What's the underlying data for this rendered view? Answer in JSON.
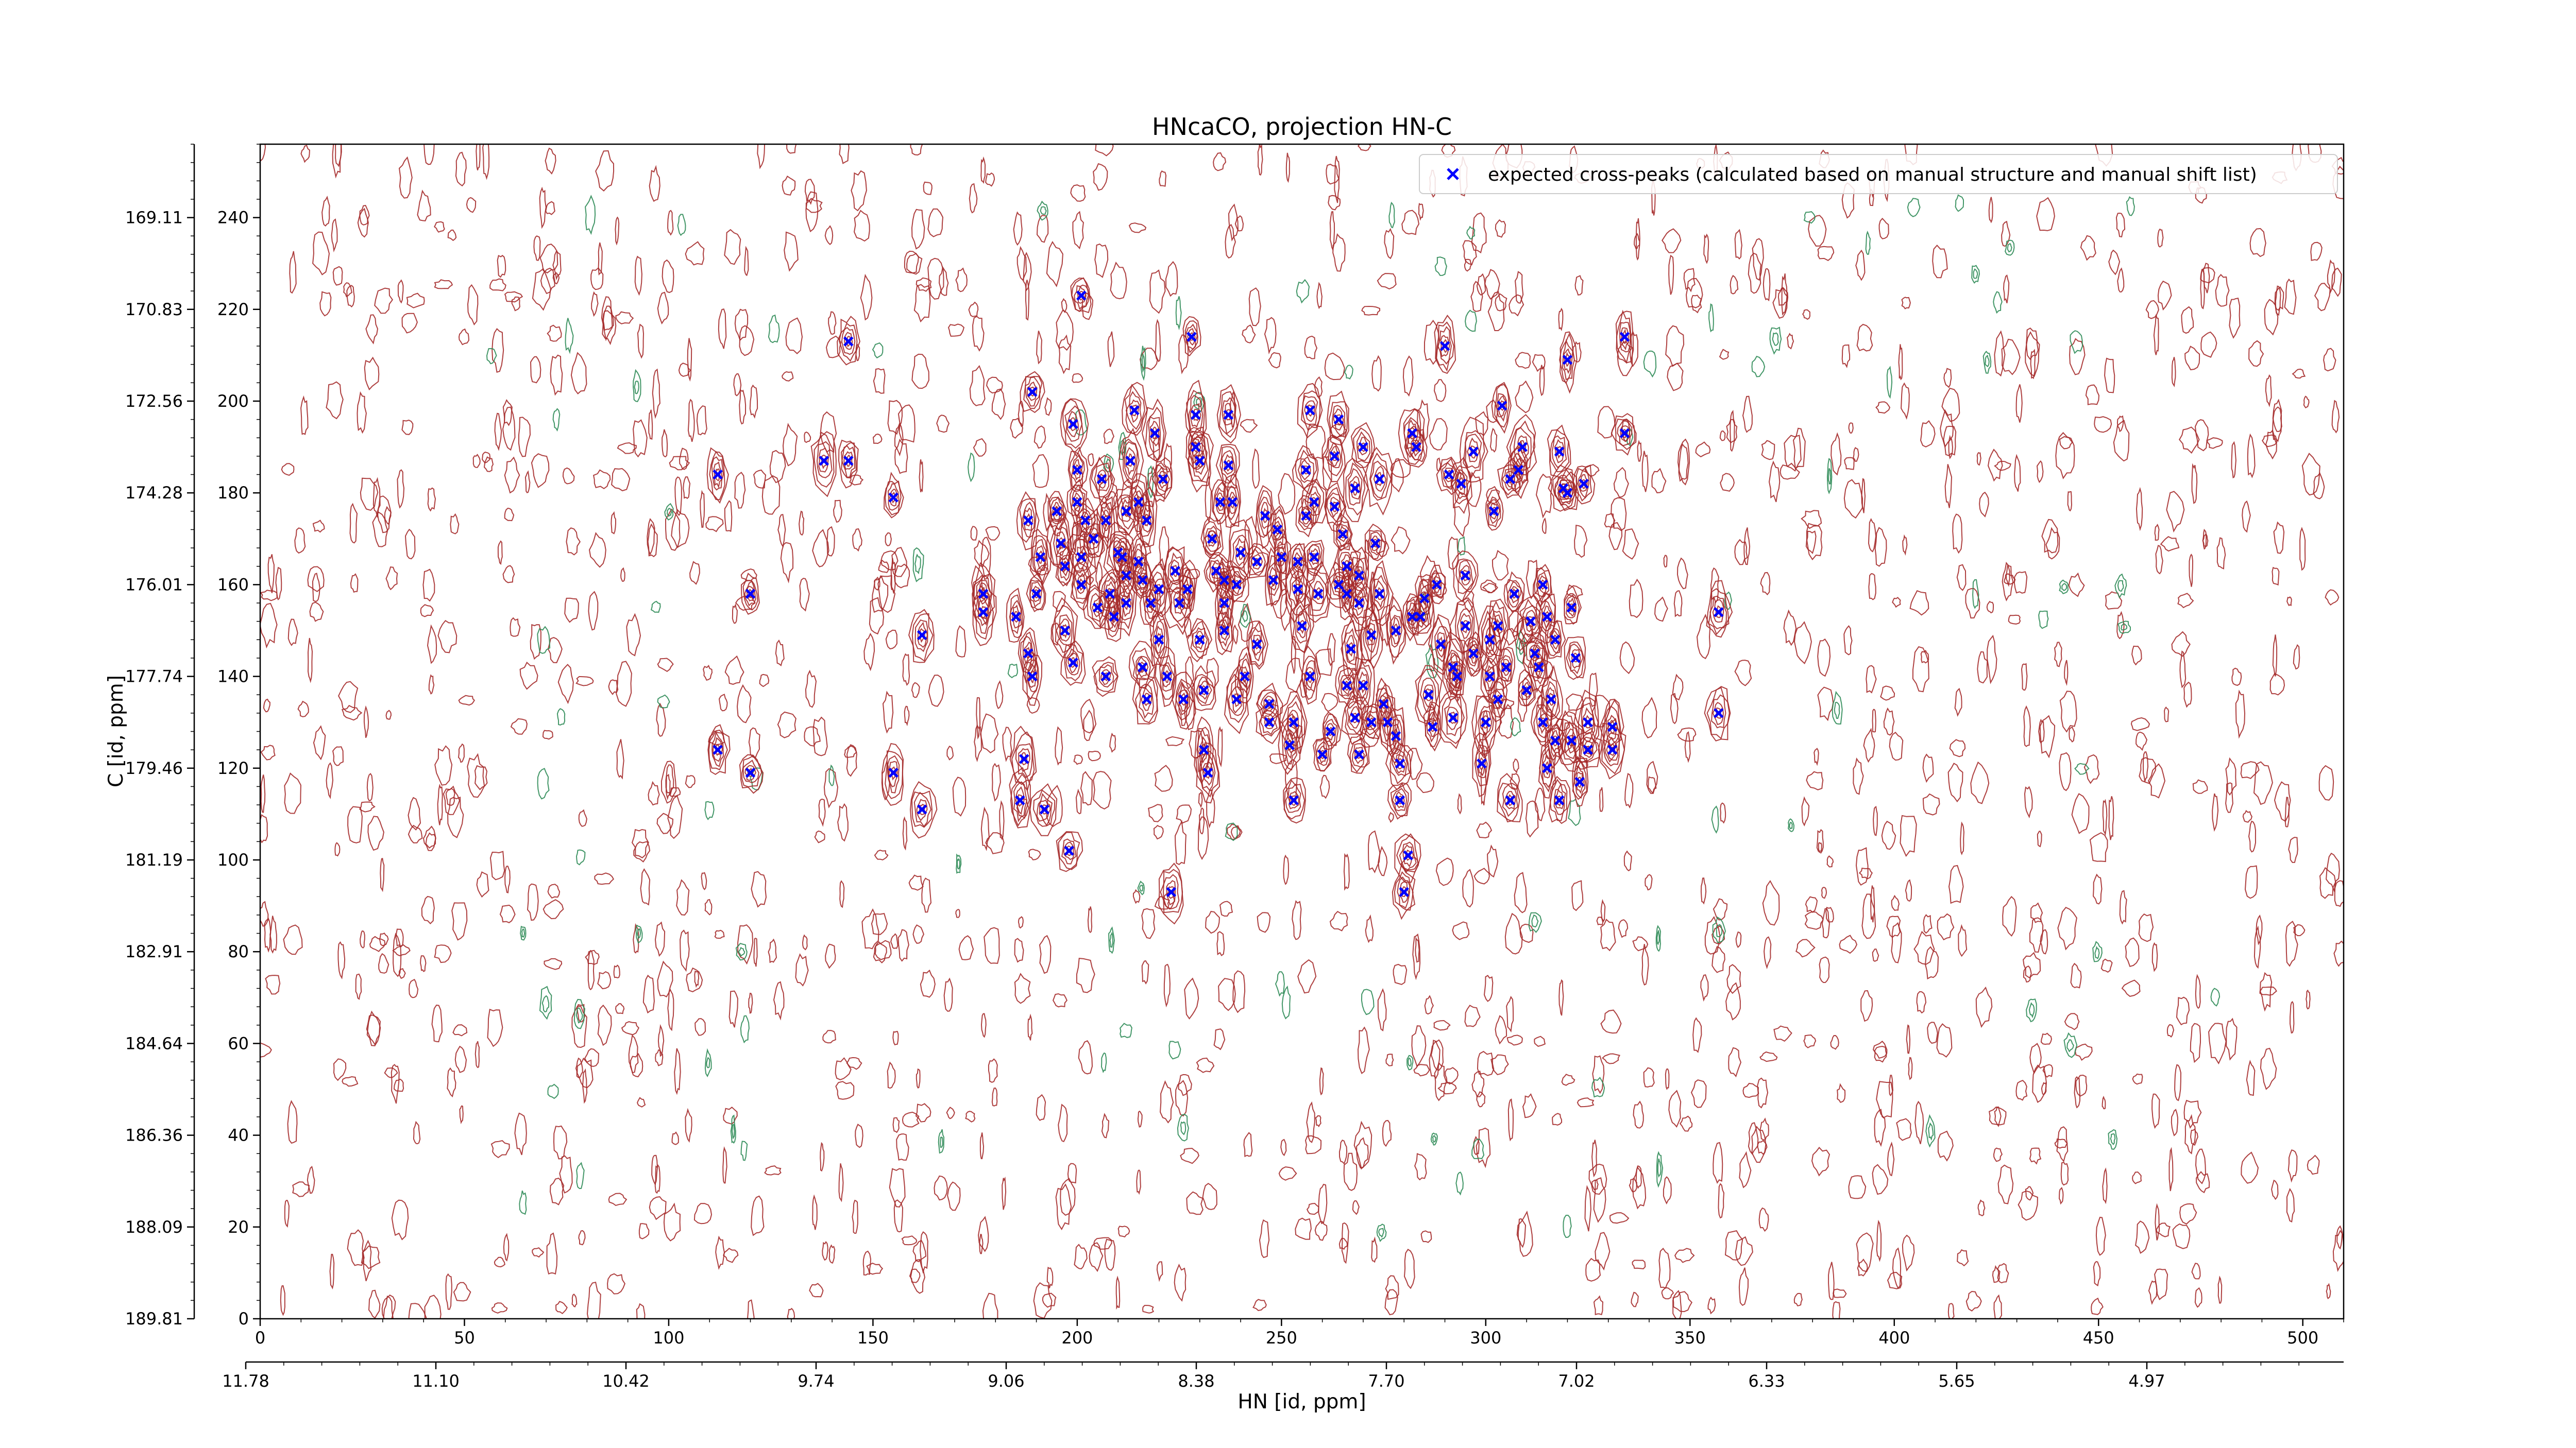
{
  "chart_data": {
    "type": "scatter",
    "title": "HNcaCO, projection HN-C",
    "xlabel": "HN [id, ppm]",
    "ylabel": "C [id, ppm]",
    "xlim": [
      0,
      510
    ],
    "ylim": [
      0,
      256
    ],
    "x_ticks": [
      0,
      50,
      100,
      150,
      200,
      250,
      300,
      350,
      400,
      450,
      500
    ],
    "y_ticks": [
      0,
      20,
      40,
      60,
      80,
      100,
      120,
      140,
      160,
      180,
      200,
      220,
      240
    ],
    "x_secondary_ticks": [
      "11.78",
      "11.10",
      "10.42",
      "9.74",
      "9.06",
      "8.38",
      "7.70",
      "7.02",
      "6.33",
      "5.65",
      "4.97"
    ],
    "y_secondary_ticks": [
      "189.81",
      "188.09",
      "186.36",
      "184.64",
      "182.91",
      "181.19",
      "179.46",
      "177.74",
      "176.01",
      "174.28",
      "172.56",
      "170.83",
      "169.11"
    ],
    "legend": {
      "position": "top-right",
      "entries": [
        "expected cross-peaks (calculated based on manual structure and manual shift list)"
      ]
    },
    "colors": {
      "marker": "#0000ff",
      "positive_contour": "#a52a2a",
      "negative_contour": "#2e8b57"
    },
    "series": [
      {
        "name": "expected cross-peaks (calculated based on manual structure and manual shift list)",
        "marker": "x",
        "points": [
          [
            112,
            184
          ],
          [
            112,
            124
          ],
          [
            120,
            158
          ],
          [
            120,
            119
          ],
          [
            138,
            187
          ],
          [
            144,
            213
          ],
          [
            144,
            187
          ],
          [
            155,
            179
          ],
          [
            155,
            119
          ],
          [
            162,
            149
          ],
          [
            162,
            111
          ],
          [
            177,
            158
          ],
          [
            177,
            154
          ],
          [
            185,
            153
          ],
          [
            186,
            113
          ],
          [
            187,
            122
          ],
          [
            188,
            174
          ],
          [
            188,
            145
          ],
          [
            189,
            140
          ],
          [
            189,
            202
          ],
          [
            190,
            158
          ],
          [
            191,
            166
          ],
          [
            192,
            111
          ],
          [
            195,
            176
          ],
          [
            196,
            169
          ],
          [
            197,
            164
          ],
          [
            197,
            150
          ],
          [
            198,
            102
          ],
          [
            199,
            143
          ],
          [
            199,
            195
          ],
          [
            200,
            185
          ],
          [
            200,
            178
          ],
          [
            201,
            223
          ],
          [
            201,
            166
          ],
          [
            201,
            160
          ],
          [
            202,
            174
          ],
          [
            204,
            170
          ],
          [
            205,
            155
          ],
          [
            206,
            183
          ],
          [
            207,
            174
          ],
          [
            207,
            140
          ],
          [
            208,
            158
          ],
          [
            209,
            153
          ],
          [
            210,
            167
          ],
          [
            211,
            166
          ],
          [
            212,
            156
          ],
          [
            212,
            162
          ],
          [
            212,
            176
          ],
          [
            213,
            187
          ],
          [
            214,
            198
          ],
          [
            215,
            178
          ],
          [
            215,
            165
          ],
          [
            216,
            142
          ],
          [
            216,
            161
          ],
          [
            217,
            174
          ],
          [
            217,
            135
          ],
          [
            218,
            156
          ],
          [
            219,
            193
          ],
          [
            220,
            159
          ],
          [
            220,
            148
          ],
          [
            221,
            183
          ],
          [
            222,
            140
          ],
          [
            223,
            93
          ],
          [
            224,
            163
          ],
          [
            225,
            156
          ],
          [
            226,
            135
          ],
          [
            227,
            159
          ],
          [
            228,
            214
          ],
          [
            229,
            197
          ],
          [
            229,
            190
          ],
          [
            230,
            187
          ],
          [
            230,
            148
          ],
          [
            231,
            124
          ],
          [
            231,
            137
          ],
          [
            232,
            119
          ],
          [
            233,
            170
          ],
          [
            234,
            163
          ],
          [
            235,
            178
          ],
          [
            236,
            161
          ],
          [
            236,
            156
          ],
          [
            236,
            150
          ],
          [
            237,
            186
          ],
          [
            237,
            197
          ],
          [
            238,
            178
          ],
          [
            239,
            160
          ],
          [
            239,
            135
          ],
          [
            240,
            167
          ],
          [
            241,
            140
          ],
          [
            244,
            165
          ],
          [
            244,
            147
          ],
          [
            246,
            175
          ],
          [
            247,
            134
          ],
          [
            247,
            130
          ],
          [
            248,
            161
          ],
          [
            249,
            172
          ],
          [
            250,
            166
          ],
          [
            252,
            125
          ],
          [
            253,
            113
          ],
          [
            253,
            130
          ],
          [
            254,
            165
          ],
          [
            254,
            159
          ],
          [
            255,
            151
          ],
          [
            256,
            175
          ],
          [
            256,
            185
          ],
          [
            257,
            198
          ],
          [
            257,
            140
          ],
          [
            258,
            178
          ],
          [
            258,
            166
          ],
          [
            259,
            158
          ],
          [
            260,
            123
          ],
          [
            262,
            128
          ],
          [
            263,
            188
          ],
          [
            263,
            177
          ],
          [
            264,
            160
          ],
          [
            264,
            196
          ],
          [
            265,
            171
          ],
          [
            266,
            158
          ],
          [
            266,
            138
          ],
          [
            266,
            164
          ],
          [
            267,
            146
          ],
          [
            268,
            131
          ],
          [
            268,
            181
          ],
          [
            269,
            162
          ],
          [
            269,
            156
          ],
          [
            269,
            123
          ],
          [
            270,
            190
          ],
          [
            270,
            138
          ],
          [
            272,
            149
          ],
          [
            272,
            130
          ],
          [
            273,
            169
          ],
          [
            274,
            183
          ],
          [
            274,
            158
          ],
          [
            275,
            134
          ],
          [
            276,
            130
          ],
          [
            278,
            150
          ],
          [
            278,
            127
          ],
          [
            279,
            121
          ],
          [
            279,
            113
          ],
          [
            280,
            93
          ],
          [
            281,
            101
          ],
          [
            282,
            193
          ],
          [
            282,
            153
          ],
          [
            283,
            190
          ],
          [
            284,
            153
          ],
          [
            285,
            157
          ],
          [
            286,
            136
          ],
          [
            287,
            129
          ],
          [
            288,
            160
          ],
          [
            289,
            147
          ],
          [
            290,
            212
          ],
          [
            291,
            184
          ],
          [
            292,
            131
          ],
          [
            292,
            142
          ],
          [
            293,
            140
          ],
          [
            294,
            182
          ],
          [
            295,
            151
          ],
          [
            295,
            162
          ],
          [
            297,
            145
          ],
          [
            297,
            189
          ],
          [
            299,
            121
          ],
          [
            300,
            130
          ],
          [
            301,
            140
          ],
          [
            301,
            148
          ],
          [
            302,
            176
          ],
          [
            303,
            151
          ],
          [
            303,
            135
          ],
          [
            304,
            199
          ],
          [
            305,
            142
          ],
          [
            306,
            183
          ],
          [
            306,
            113
          ],
          [
            307,
            158
          ],
          [
            308,
            185
          ],
          [
            309,
            190
          ],
          [
            310,
            137
          ],
          [
            311,
            152
          ],
          [
            312,
            145
          ],
          [
            313,
            142
          ],
          [
            314,
            130
          ],
          [
            314,
            160
          ],
          [
            315,
            153
          ],
          [
            315,
            120
          ],
          [
            316,
            135
          ],
          [
            317,
            148
          ],
          [
            317,
            126
          ],
          [
            318,
            113
          ],
          [
            318,
            189
          ],
          [
            319,
            181
          ],
          [
            320,
            209
          ],
          [
            320,
            180
          ],
          [
            321,
            126
          ],
          [
            321,
            155
          ],
          [
            322,
            144
          ],
          [
            323,
            117
          ],
          [
            324,
            182
          ],
          [
            325,
            124
          ],
          [
            325,
            130
          ],
          [
            331,
            124
          ],
          [
            331,
            129
          ],
          [
            334,
            214
          ],
          [
            334,
            193
          ],
          [
            357,
            132
          ],
          [
            357,
            154
          ]
        ]
      }
    ]
  }
}
